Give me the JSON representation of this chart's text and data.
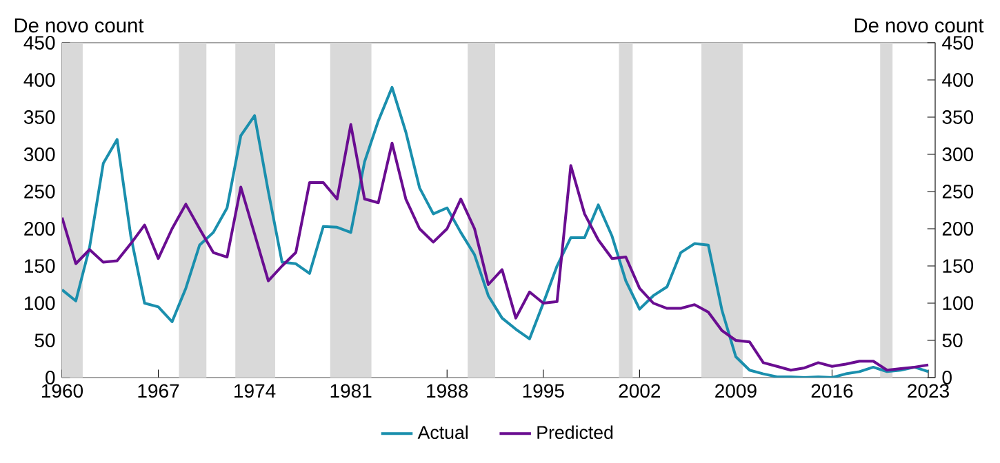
{
  "chart_data": {
    "type": "line",
    "ylabel": "De novo count",
    "y2label": "De novo count",
    "x": [
      1960,
      1961,
      1962,
      1963,
      1964,
      1965,
      1966,
      1967,
      1968,
      1969,
      1970,
      1971,
      1972,
      1973,
      1974,
      1975,
      1976,
      1977,
      1978,
      1979,
      1980,
      1981,
      1982,
      1983,
      1984,
      1985,
      1986,
      1987,
      1988,
      1989,
      1990,
      1991,
      1992,
      1993,
      1994,
      1995,
      1996,
      1997,
      1998,
      1999,
      2000,
      2001,
      2002,
      2003,
      2004,
      2005,
      2006,
      2007,
      2008,
      2009,
      2010,
      2011,
      2012,
      2013,
      2014,
      2015,
      2016,
      2017,
      2018,
      2019,
      2020,
      2021,
      2022,
      2023
    ],
    "series": [
      {
        "name": "Actual",
        "color": "#1a8fad",
        "values": [
          118,
          103,
          175,
          288,
          320,
          190,
          100,
          95,
          75,
          120,
          178,
          195,
          228,
          325,
          352,
          250,
          155,
          153,
          140,
          203,
          202,
          195,
          290,
          345,
          390,
          330,
          255,
          220,
          228,
          195,
          165,
          110,
          80,
          65,
          52,
          100,
          150,
          188,
          188,
          232,
          190,
          130,
          92,
          110,
          122,
          168,
          180,
          178,
          90,
          28,
          10,
          5,
          1,
          1,
          0,
          1,
          0,
          5,
          8,
          14,
          8,
          10,
          14,
          8
        ]
      },
      {
        "name": "Predicted",
        "color": "#6a0d91",
        "values": [
          215,
          153,
          172,
          155,
          157,
          180,
          205,
          160,
          200,
          233,
          200,
          168,
          162,
          256,
          193,
          130,
          150,
          168,
          262,
          262,
          240,
          340,
          240,
          235,
          315,
          240,
          200,
          182,
          200,
          240,
          200,
          125,
          145,
          80,
          115,
          100,
          102,
          285,
          220,
          185,
          160,
          162,
          120,
          100,
          93,
          93,
          98,
          88,
          63,
          50,
          48,
          20,
          15,
          10,
          13,
          20,
          15,
          18,
          22,
          22,
          10,
          12,
          14,
          17
        ]
      }
    ],
    "bands": [
      {
        "axis": "x",
        "from": 1960,
        "to": 1961.5,
        "color": "#d9d9d9"
      },
      {
        "axis": "x",
        "from": 1968.5,
        "to": 1970.5,
        "color": "#d9d9d9"
      },
      {
        "axis": "x",
        "from": 1972.6,
        "to": 1975.5,
        "color": "#d9d9d9"
      },
      {
        "axis": "x",
        "from": 1979.5,
        "to": 1982.5,
        "color": "#d9d9d9"
      },
      {
        "axis": "x",
        "from": 1989.5,
        "to": 1991.5,
        "color": "#d9d9d9"
      },
      {
        "axis": "x",
        "from": 2000.5,
        "to": 2001.5,
        "color": "#d9d9d9"
      },
      {
        "axis": "x",
        "from": 2006.5,
        "to": 2009.5,
        "color": "#d9d9d9"
      },
      {
        "axis": "x",
        "from": 2019.5,
        "to": 2020.4,
        "color": "#d9d9d9"
      }
    ],
    "xlim": [
      1960,
      2023.5
    ],
    "xticks": [
      1960,
      1967,
      1974,
      1981,
      1988,
      1995,
      2002,
      2009,
      2016,
      2023
    ],
    "ylim": [
      0,
      450
    ],
    "yticks": [
      0,
      50,
      100,
      150,
      200,
      250,
      300,
      350,
      400,
      450
    ],
    "y2lim": [
      0,
      450
    ],
    "y2ticks": [
      0,
      50,
      100,
      150,
      200,
      250,
      300,
      350,
      400,
      450
    ],
    "legend": "bottom"
  }
}
